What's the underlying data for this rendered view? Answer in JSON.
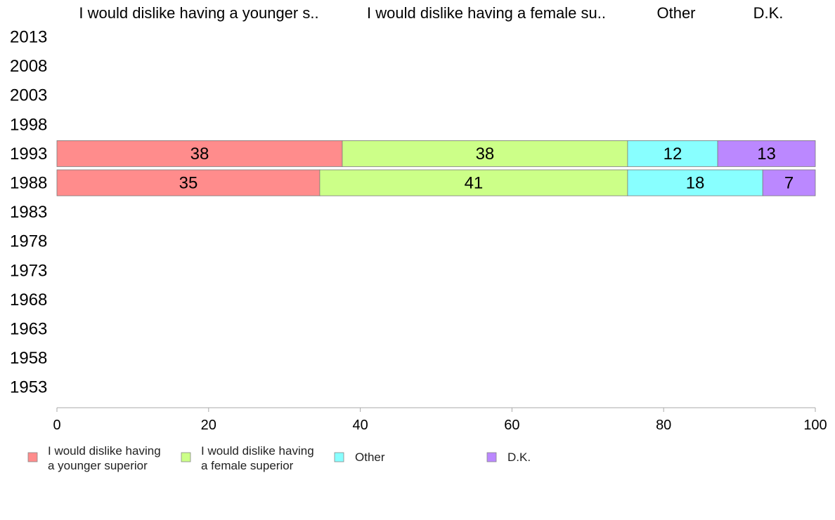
{
  "chart_data": {
    "type": "bar",
    "orientation": "horizontal",
    "stacked": true,
    "header_labels": [
      "I would dislike having a younger s..",
      "I would dislike having a female su..",
      "Other",
      "D.K."
    ],
    "categories": [
      "2013",
      "2008",
      "2003",
      "1998",
      "1993",
      "1988",
      "1983",
      "1978",
      "1973",
      "1968",
      "1963",
      "1958",
      "1953"
    ],
    "series": [
      {
        "name": "I would dislike having a younger superior",
        "legend_lines": [
          "I would dislike having",
          "a younger superior"
        ],
        "color": "#ff8c8c",
        "values": [
          null,
          null,
          null,
          null,
          38,
          35,
          null,
          null,
          null,
          null,
          null,
          null,
          null
        ]
      },
      {
        "name": "I would dislike having a female superior",
        "legend_lines": [
          "I would dislike having",
          "a female superior"
        ],
        "color": "#ccff88",
        "values": [
          null,
          null,
          null,
          null,
          38,
          41,
          null,
          null,
          null,
          null,
          null,
          null,
          null
        ]
      },
      {
        "name": "Other",
        "legend_lines": [
          "Other"
        ],
        "color": "#88ffff",
        "values": [
          null,
          null,
          null,
          null,
          12,
          18,
          null,
          null,
          null,
          null,
          null,
          null,
          null
        ]
      },
      {
        "name": "D.K.",
        "legend_lines": [
          "D.K."
        ],
        "color": "#bb88ff",
        "values": [
          null,
          null,
          null,
          null,
          13,
          7,
          null,
          null,
          null,
          null,
          null,
          null,
          null
        ]
      }
    ],
    "xlim": [
      0,
      100
    ],
    "xticks": [
      0,
      20,
      40,
      60,
      80,
      100
    ],
    "title": "",
    "xlabel": "",
    "ylabel": "",
    "grid": false,
    "legend_position": "bottom"
  }
}
